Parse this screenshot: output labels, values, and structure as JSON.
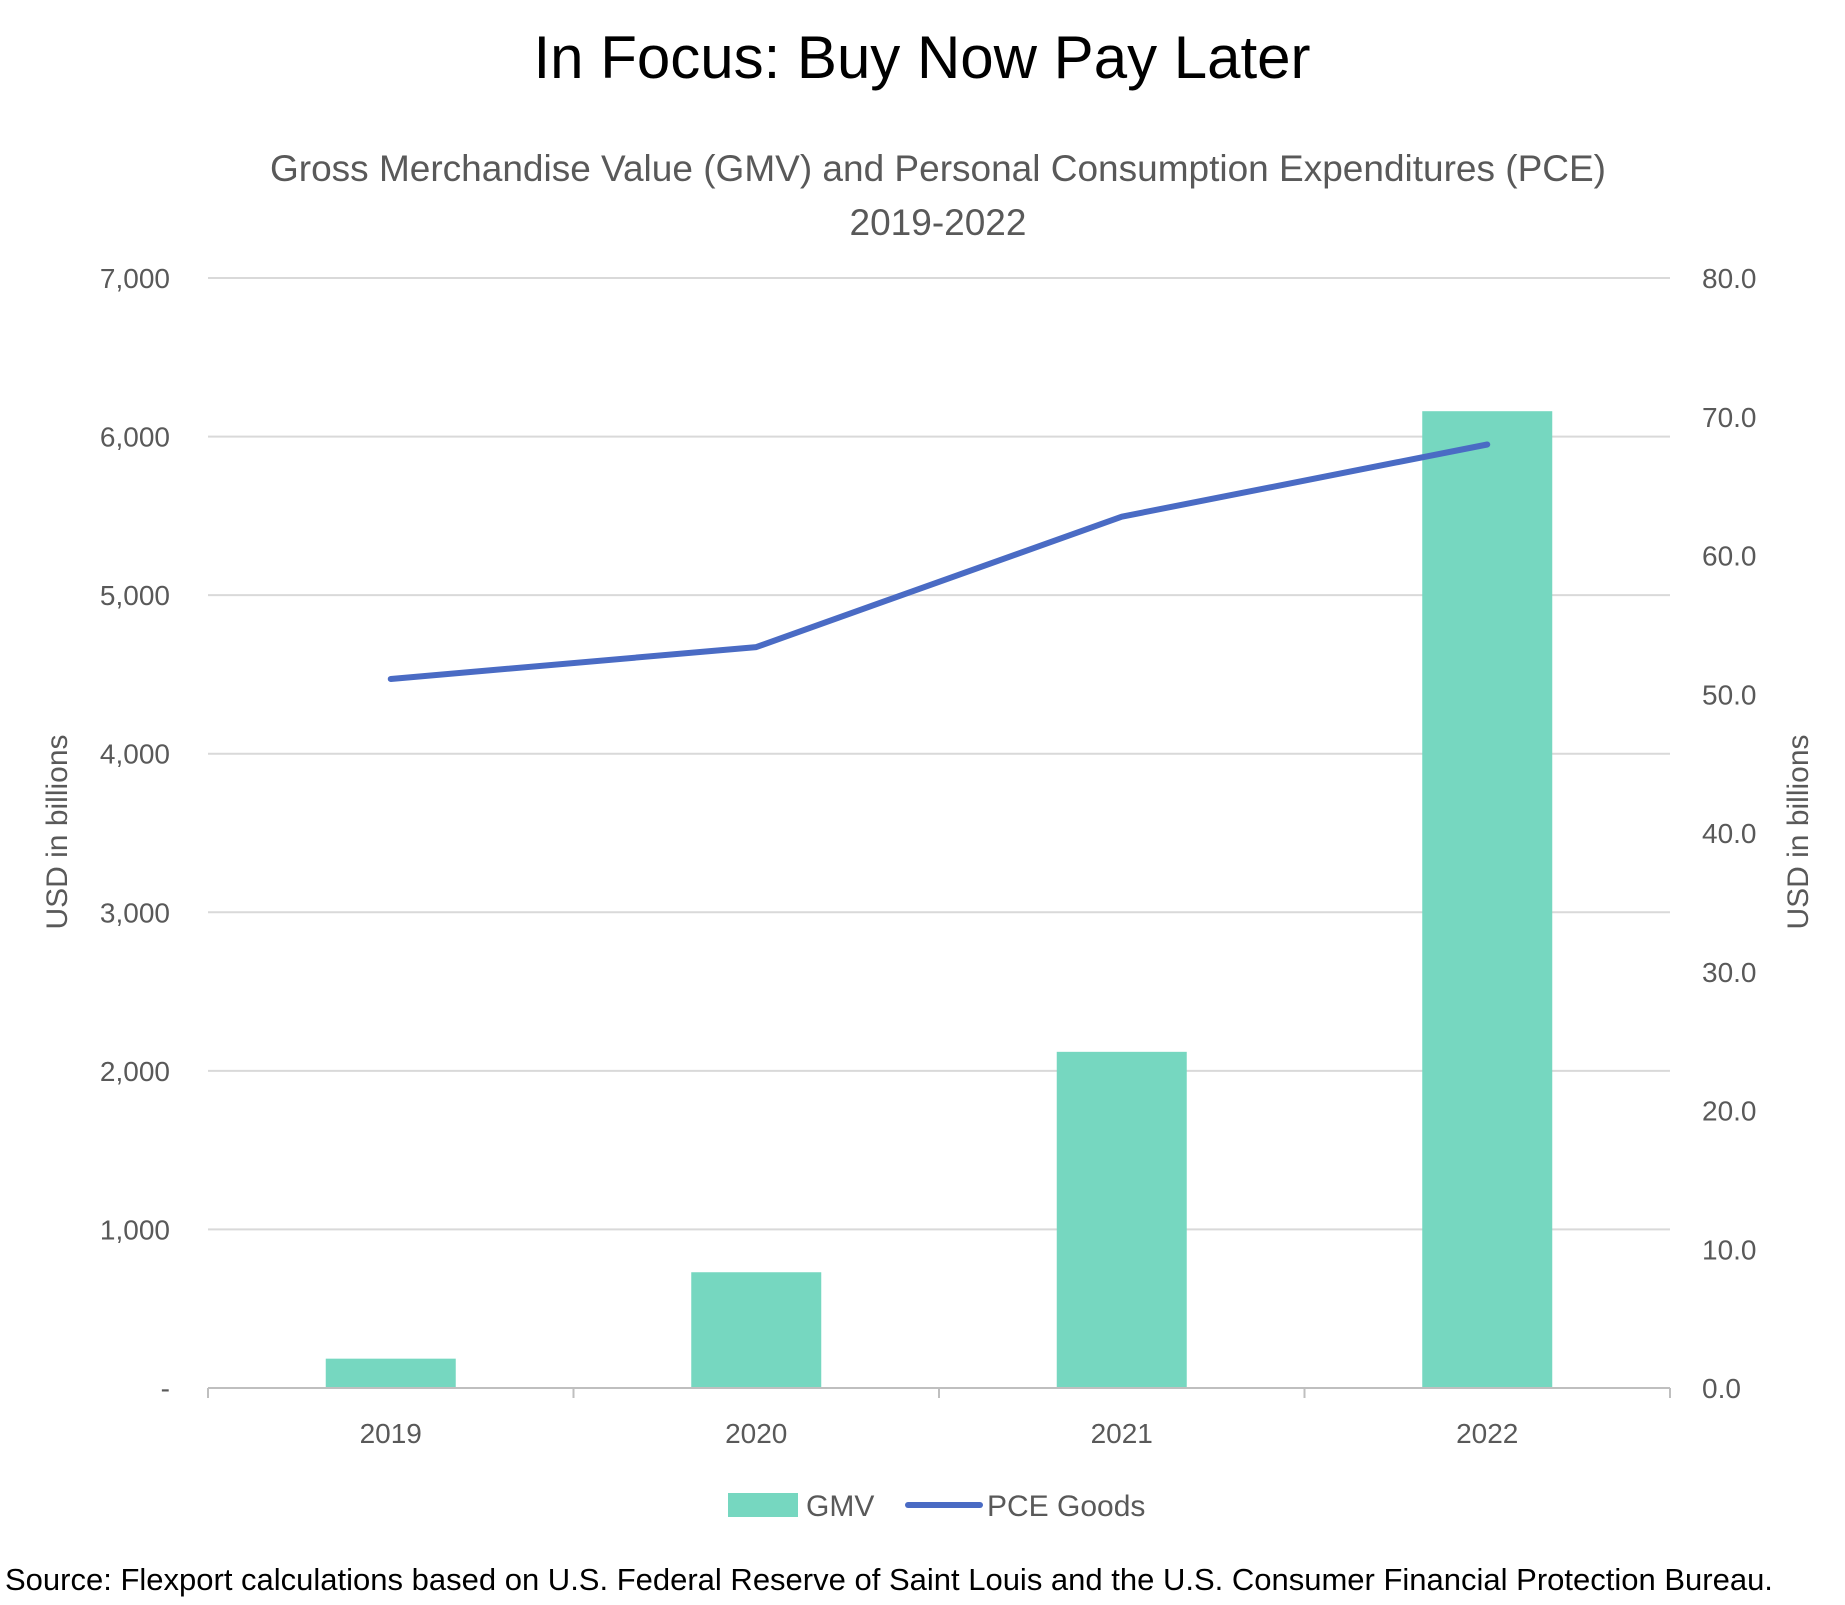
{
  "header": {
    "title": "In Focus: Buy Now Pay Later",
    "subtitle_line1": "Gross Merchandise Value (GMV) and Personal Consumption Expenditures (PCE)",
    "subtitle_line2": "2019-2022"
  },
  "chart_data": {
    "type": "bar",
    "categories": [
      "2019",
      "2020",
      "2021",
      "2022"
    ],
    "series": [
      {
        "name": "GMV",
        "type": "bar",
        "axis": "left",
        "color": "#76D7C0",
        "values": [
          185,
          730,
          2120,
          6160
        ]
      },
      {
        "name": "PCE Goods",
        "type": "line",
        "axis": "right",
        "color": "#4A6BC4",
        "values": [
          51.1,
          53.4,
          62.8,
          68.0
        ]
      }
    ],
    "left_axis": {
      "label": "USD in billions",
      "ylim": [
        0,
        7000
      ],
      "ticks": [
        0,
        1000,
        2000,
        3000,
        4000,
        5000,
        6000,
        7000
      ],
      "tick_labels": [
        "-",
        "1,000",
        "2,000",
        "3,000",
        "4,000",
        "5,000",
        "6,000",
        "7,000"
      ]
    },
    "right_axis": {
      "label": "USD in billions",
      "ylim": [
        0,
        80
      ],
      "ticks": [
        0,
        10,
        20,
        30,
        40,
        50,
        60,
        70,
        80
      ],
      "tick_labels": [
        "0.0",
        "10.0",
        "20.0",
        "30.0",
        "40.0",
        "50.0",
        "60.0",
        "70.0",
        "80.0"
      ]
    },
    "grid": true,
    "legend_position": "bottom-center"
  },
  "footer": {
    "source": "Source: Flexport calculations based on U.S. Federal Reserve of Saint Louis and the U.S. Consumer Financial Protection Bureau."
  },
  "colors": {
    "gridline": "#D9D9D9",
    "axis_line": "#BFBFBF"
  }
}
